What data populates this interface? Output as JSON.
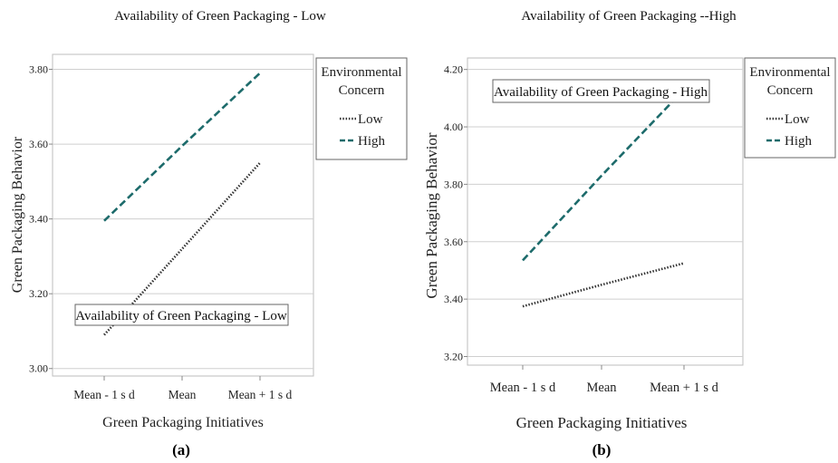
{
  "chart_data": [
    {
      "type": "line",
      "panel_label": "(a)",
      "title": "Availability of Green Packaging - Low",
      "xlabel": "Green Packaging Initiatives",
      "ylabel": "Green Packaging Behavior",
      "categories": [
        "Mean - 1 s d",
        "Mean",
        "Mean + 1 s d"
      ],
      "ylim": [
        2.98,
        3.84
      ],
      "yticks": [
        "3.00",
        "3.20",
        "3.40",
        "3.60",
        "3.80"
      ],
      "grid": true,
      "legend": {
        "title": [
          "Environmental",
          "Concern"
        ],
        "placement": "right"
      },
      "annotation": "Availability of Green Packaging - Low",
      "series": [
        {
          "name": "Low",
          "values": [
            3.09,
            3.32,
            3.55
          ],
          "color": "#333333",
          "style": "dotted"
        },
        {
          "name": "High",
          "values": [
            3.395,
            3.595,
            3.79
          ],
          "color": "#1d6b6b",
          "style": "dashed"
        }
      ]
    },
    {
      "type": "line",
      "panel_label": "(b)",
      "title": "Availability of Green Packaging --High",
      "xlabel": "Green Packaging Initiatives",
      "ylabel": "Green Packaging Behavior",
      "categories": [
        "Mean - 1 s d",
        "Mean",
        "Mean + 1 s d"
      ],
      "ylim": [
        3.17,
        4.24
      ],
      "yticks": [
        "3.20",
        "3.40",
        "3.60",
        "3.80",
        "4.00",
        "4.20"
      ],
      "grid": true,
      "legend": {
        "title": [
          "Environmental",
          "Concern"
        ],
        "placement": "right"
      },
      "annotation": "Availability of Green Packaging - High",
      "series": [
        {
          "name": "Low",
          "values": [
            3.375,
            3.45,
            3.525
          ],
          "color": "#333333",
          "style": "dotted"
        },
        {
          "name": "High",
          "values": [
            3.535,
            3.83,
            4.13
          ],
          "color": "#1d6b6b",
          "style": "dashed"
        }
      ]
    }
  ]
}
